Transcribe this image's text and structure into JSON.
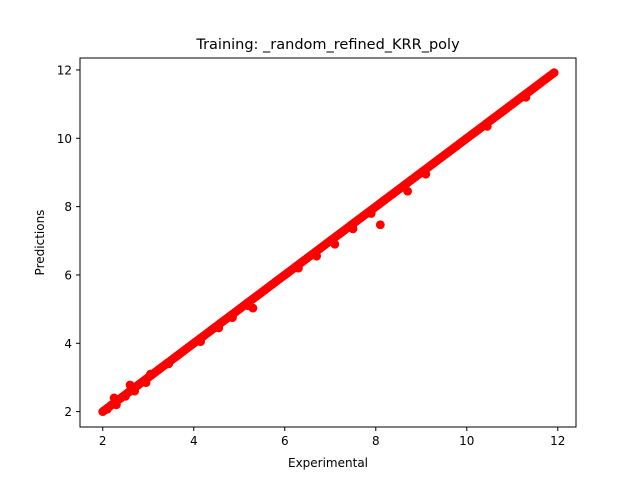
{
  "chart_data": {
    "type": "scatter",
    "title": "Training: _random_refined_KRR_poly",
    "xlabel": "Experimental",
    "ylabel": "Predictions",
    "xlim": [
      1.5,
      12.4
    ],
    "ylim": [
      1.55,
      12.35
    ],
    "xticks": [
      2,
      4,
      6,
      8,
      10,
      12
    ],
    "yticks": [
      2,
      4,
      6,
      8,
      10,
      12
    ],
    "grid": false,
    "legend": "none",
    "series": [
      {
        "color": "#ff0000",
        "main_diagonal": {
          "x_start": 2.0,
          "x_end": 11.92,
          "step": 0.04,
          "y_offset": 0.0
        },
        "points": [
          {
            "x": 2.1,
            "y": 2.07
          },
          {
            "x": 2.25,
            "y": 2.4
          },
          {
            "x": 2.3,
            "y": 2.2
          },
          {
            "x": 2.5,
            "y": 2.45
          },
          {
            "x": 2.6,
            "y": 2.78
          },
          {
            "x": 2.7,
            "y": 2.6
          },
          {
            "x": 2.95,
            "y": 2.85
          },
          {
            "x": 3.05,
            "y": 3.1
          },
          {
            "x": 3.45,
            "y": 3.4
          },
          {
            "x": 4.15,
            "y": 4.05
          },
          {
            "x": 4.55,
            "y": 4.45
          },
          {
            "x": 4.85,
            "y": 4.75
          },
          {
            "x": 5.2,
            "y": 5.1
          },
          {
            "x": 5.3,
            "y": 5.03
          },
          {
            "x": 6.3,
            "y": 6.2
          },
          {
            "x": 6.7,
            "y": 6.55
          },
          {
            "x": 7.1,
            "y": 6.9
          },
          {
            "x": 7.5,
            "y": 7.35
          },
          {
            "x": 7.9,
            "y": 7.8
          },
          {
            "x": 8.1,
            "y": 7.47
          },
          {
            "x": 8.7,
            "y": 8.45
          },
          {
            "x": 9.1,
            "y": 8.95
          },
          {
            "x": 10.45,
            "y": 10.35
          },
          {
            "x": 11.3,
            "y": 11.2
          }
        ]
      }
    ]
  }
}
